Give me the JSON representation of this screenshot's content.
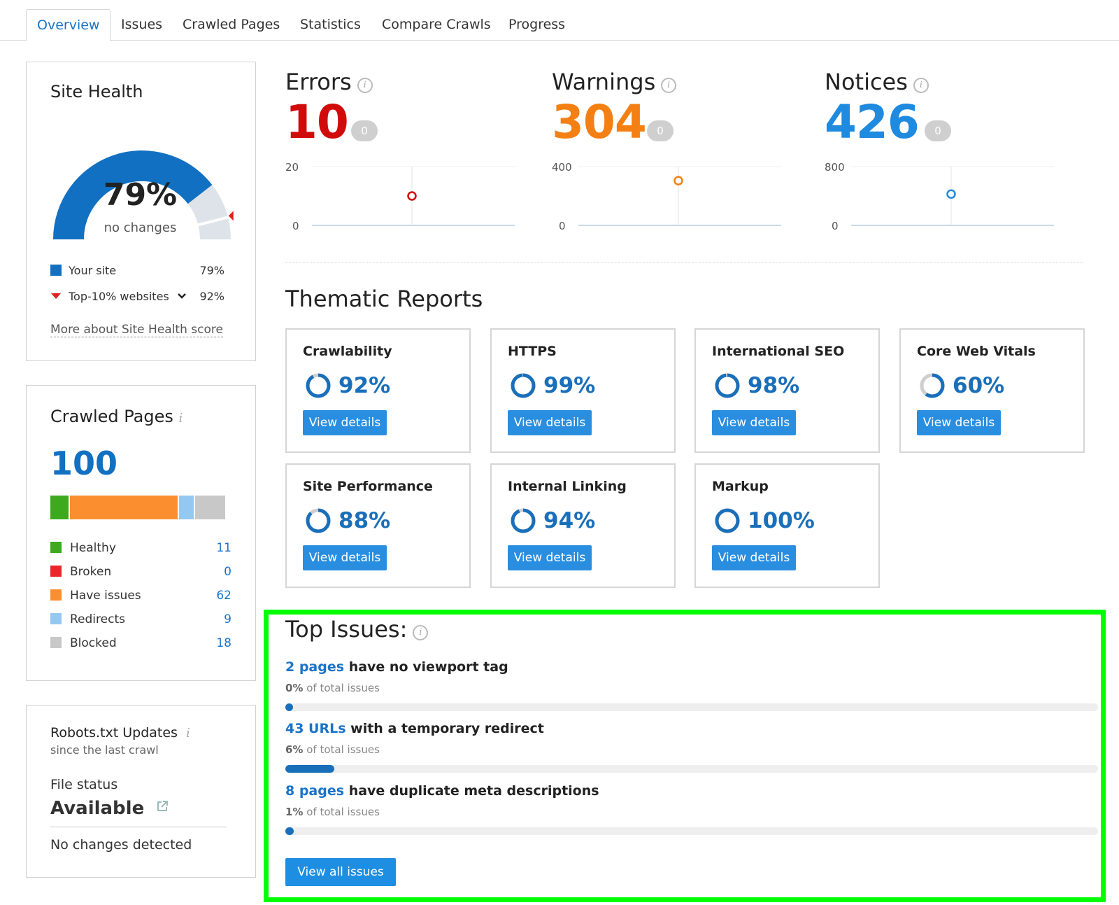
{
  "tabs": [
    {
      "label": "Overview"
    },
    {
      "label": "Issues"
    },
    {
      "label": "Crawled Pages"
    },
    {
      "label": "Statistics"
    },
    {
      "label": "Compare Crawls"
    },
    {
      "label": "Progress"
    }
  ],
  "site_health": {
    "title": "Site Health",
    "score": 0.79,
    "percent": "79%",
    "subtitle": "no changes",
    "legend": [
      {
        "label": "Your site",
        "value": "79%"
      },
      {
        "label": "Top-10% websites",
        "value": "92%"
      }
    ],
    "more_link": "More about Site Health score",
    "colors": {
      "your_site": "#1170c1",
      "top10": "#e02020",
      "track": "#dde3e8"
    }
  },
  "crawled_pages": {
    "title": "Crawled Pages",
    "info": "i",
    "total": "100",
    "items": [
      {
        "label": "Healthy",
        "value": "11",
        "count": 11,
        "color": "#3caa1c"
      },
      {
        "label": "Broken",
        "value": "0",
        "count": 0,
        "color": "#e8262b"
      },
      {
        "label": "Have issues",
        "value": "62",
        "count": 62,
        "color": "#fb8f2f"
      },
      {
        "label": "Redirects",
        "value": "9",
        "count": 9,
        "color": "#95c8f0"
      },
      {
        "label": "Blocked",
        "value": "18",
        "count": 18,
        "color": "#c8c8c8"
      }
    ]
  },
  "robots": {
    "title": "Robots.txt Updates",
    "info": "i",
    "subtitle": "since the last crawl",
    "file_status_label": "File status",
    "status": "Available",
    "changes": "No changes detected"
  },
  "metrics": [
    {
      "title": "Errors",
      "value": "10",
      "badge": "0",
      "color": "#d10a0a",
      "axis_max": "20",
      "axis_min": "0",
      "point": 10,
      "max": 20
    },
    {
      "title": "Warnings",
      "value": "304",
      "badge": "0",
      "color": "#f47f12",
      "axis_max": "400",
      "axis_min": "0",
      "point": 304,
      "max": 400
    },
    {
      "title": "Notices",
      "value": "426",
      "badge": "0",
      "color": "#1e8ae0",
      "axis_max": "800",
      "axis_min": "0",
      "point": 426,
      "max": 800
    }
  ],
  "info_glyph": "i",
  "thematic": {
    "title": "Thematic Reports",
    "button_label": "View details",
    "reports": [
      {
        "title": "Crawlability",
        "percent": "92%",
        "value": 0.92
      },
      {
        "title": "HTTPS",
        "percent": "99%",
        "value": 0.99
      },
      {
        "title": "International SEO",
        "percent": "98%",
        "value": 0.98
      },
      {
        "title": "Core Web Vitals",
        "percent": "60%",
        "value": 0.6
      },
      {
        "title": "Site Performance",
        "percent": "88%",
        "value": 0.88
      },
      {
        "title": "Internal Linking",
        "percent": "94%",
        "value": 0.94
      },
      {
        "title": "Markup",
        "percent": "100%",
        "value": 1.0
      }
    ]
  },
  "top_issues": {
    "title": "Top Issues:",
    "suffix": "of total issues",
    "items": [
      {
        "count": "2 pages",
        "text": "have no viewport tag",
        "percent": "0%",
        "share": 0.0
      },
      {
        "count": "43 URLs",
        "text": "with a temporary redirect",
        "percent": "6%",
        "share": 0.06
      },
      {
        "count": "8 pages",
        "text": "have duplicate meta descriptions",
        "percent": "1%",
        "share": 0.01
      }
    ],
    "button_label": "View all issues"
  }
}
